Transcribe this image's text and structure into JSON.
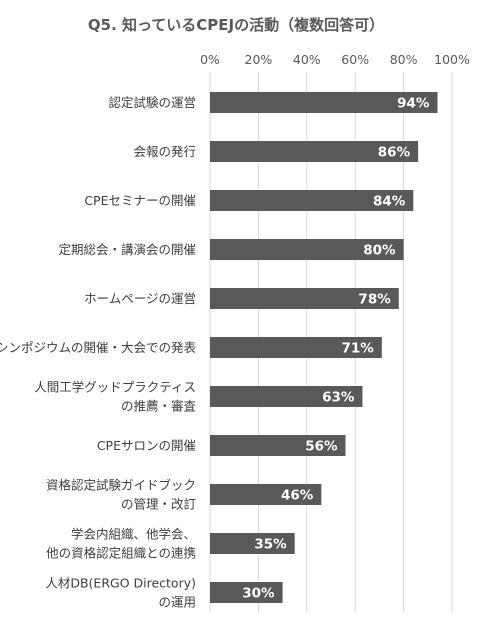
{
  "chart_data": {
    "type": "bar",
    "orientation": "horizontal",
    "title": "Q5. 知っているCPEJの活動（複数回答可）",
    "xlim": [
      0,
      100
    ],
    "x_ticks": [
      "0%",
      "20%",
      "40%",
      "60%",
      "80%",
      "100%"
    ],
    "grid": true,
    "categories": [
      [
        "認定試験の運営"
      ],
      [
        "会報の発行"
      ],
      [
        "CPEセミナーの開催"
      ],
      [
        "定期総会・講演会の開催"
      ],
      [
        "ホームページの運営"
      ],
      [
        "シンポジウムの開催・大会での発表"
      ],
      [
        "人間工学グッドプラクティス",
        "の推薦・審査"
      ],
      [
        "CPEサロンの開催"
      ],
      [
        "資格認定試験ガイドブック",
        "の管理・改訂"
      ],
      [
        "学会内組織、他学会、",
        "他の資格認定組織との連携"
      ],
      [
        "人材DB(ERGO Directory)",
        "の運用"
      ]
    ],
    "values": [
      94,
      86,
      84,
      80,
      78,
      71,
      63,
      56,
      46,
      35,
      30
    ],
    "value_labels": [
      "94%",
      "86%",
      "84%",
      "80%",
      "78%",
      "71%",
      "63%",
      "56%",
      "46%",
      "35%",
      "30%"
    ],
    "bar_color": "#595959",
    "grid_color": "#d9d9d9"
  }
}
